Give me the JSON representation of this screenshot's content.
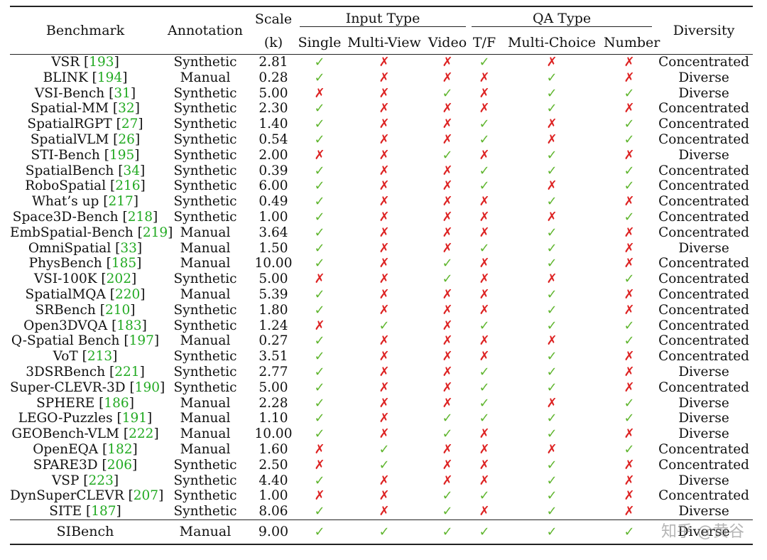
{
  "header": {
    "benchmark": "Benchmark",
    "annotation": "Annotation",
    "scale": "Scale",
    "scale_unit": "(k)",
    "input_type": "Input Type",
    "single": "Single",
    "multi_view": "Multi-View",
    "video": "Video",
    "qa_type": "QA Type",
    "tf": "T/F",
    "multi_choice": "Multi-Choice",
    "number": "Number",
    "diversity": "Diversity"
  },
  "symbols": {
    "yes": "✓",
    "no": "✗"
  },
  "rows": [
    {
      "name": "VSR",
      "ref": "193",
      "annotation": "Synthetic",
      "scale": "2.81",
      "single": "yes",
      "multi_view": "no",
      "video": "no",
      "tf": "yes",
      "mc": "no",
      "num": "no",
      "diversity": "Concentrated"
    },
    {
      "name": "BLINK",
      "ref": "194",
      "annotation": "Manual",
      "scale": "0.28",
      "single": "yes",
      "multi_view": "no",
      "video": "no",
      "tf": "no",
      "mc": "yes",
      "num": "no",
      "diversity": "Diverse"
    },
    {
      "name": "VSI-Bench",
      "ref": "31",
      "annotation": "Synthetic",
      "scale": "5.00",
      "single": "no",
      "multi_view": "no",
      "video": "yes",
      "tf": "no",
      "mc": "yes",
      "num": "yes",
      "diversity": "Diverse"
    },
    {
      "name": "Spatial-MM",
      "ref": "32",
      "annotation": "Synthetic",
      "scale": "2.30",
      "single": "yes",
      "multi_view": "no",
      "video": "no",
      "tf": "no",
      "mc": "yes",
      "num": "no",
      "diversity": "Concentrated"
    },
    {
      "name": "SpatialRGPT",
      "ref": "27",
      "annotation": "Synthetic",
      "scale": "1.40",
      "single": "yes",
      "multi_view": "no",
      "video": "no",
      "tf": "yes",
      "mc": "no",
      "num": "yes",
      "diversity": "Concentrated"
    },
    {
      "name": "SpatialVLM",
      "ref": "26",
      "annotation": "Synthetic",
      "scale": "0.54",
      "single": "yes",
      "multi_view": "no",
      "video": "no",
      "tf": "yes",
      "mc": "no",
      "num": "yes",
      "diversity": "Concentrated"
    },
    {
      "name": "STI-Bench",
      "ref": "195",
      "annotation": "Synthetic",
      "scale": "2.00",
      "single": "no",
      "multi_view": "no",
      "video": "yes",
      "tf": "no",
      "mc": "yes",
      "num": "no",
      "diversity": "Diverse"
    },
    {
      "name": "SpatialBench",
      "ref": "34",
      "annotation": "Synthetic",
      "scale": "0.39",
      "single": "yes",
      "multi_view": "no",
      "video": "no",
      "tf": "yes",
      "mc": "yes",
      "num": "yes",
      "diversity": "Concentrated"
    },
    {
      "name": "RoboSpatial",
      "ref": "216",
      "annotation": "Synthetic",
      "scale": "6.00",
      "single": "yes",
      "multi_view": "no",
      "video": "no",
      "tf": "yes",
      "mc": "no",
      "num": "yes",
      "diversity": "Concentrated"
    },
    {
      "name": "What’s up",
      "ref": "217",
      "annotation": "Synthetic",
      "scale": "0.49",
      "single": "yes",
      "multi_view": "no",
      "video": "no",
      "tf": "no",
      "mc": "yes",
      "num": "no",
      "diversity": "Concentrated"
    },
    {
      "name": "Space3D-Bench",
      "ref": "218",
      "annotation": "Synthetic",
      "scale": "1.00",
      "single": "yes",
      "multi_view": "no",
      "video": "no",
      "tf": "no",
      "mc": "no",
      "num": "yes",
      "diversity": "Concentrated"
    },
    {
      "name": "EmbSpatial-Bench",
      "ref": "219",
      "annotation": "Manual",
      "scale": "3.64",
      "single": "yes",
      "multi_view": "no",
      "video": "no",
      "tf": "no",
      "mc": "yes",
      "num": "no",
      "diversity": "Concentrated"
    },
    {
      "name": "OmniSpatial",
      "ref": "33",
      "annotation": "Manual",
      "scale": "1.50",
      "single": "yes",
      "multi_view": "no",
      "video": "no",
      "tf": "yes",
      "mc": "yes",
      "num": "no",
      "diversity": "Diverse"
    },
    {
      "name": "PhysBench",
      "ref": "185",
      "annotation": "Manual",
      "scale": "10.00",
      "single": "yes",
      "multi_view": "no",
      "video": "yes",
      "tf": "no",
      "mc": "yes",
      "num": "no",
      "diversity": "Concentrated"
    },
    {
      "name": "VSI-100K",
      "ref": "202",
      "annotation": "Synthetic",
      "scale": "5.00",
      "single": "no",
      "multi_view": "no",
      "video": "yes",
      "tf": "no",
      "mc": "no",
      "num": "yes",
      "diversity": "Concentrated"
    },
    {
      "name": "SpatialMQA",
      "ref": "220",
      "annotation": "Manual",
      "scale": "5.39",
      "single": "yes",
      "multi_view": "no",
      "video": "no",
      "tf": "no",
      "mc": "yes",
      "num": "no",
      "diversity": "Concentrated"
    },
    {
      "name": "SRBench",
      "ref": "210",
      "annotation": "Synthetic",
      "scale": "1.80",
      "single": "yes",
      "multi_view": "no",
      "video": "no",
      "tf": "no",
      "mc": "yes",
      "num": "no",
      "diversity": "Concentrated"
    },
    {
      "name": "Open3DVQA",
      "ref": "183",
      "annotation": "Synthetic",
      "scale": "1.24",
      "single": "no",
      "multi_view": "yes",
      "video": "no",
      "tf": "yes",
      "mc": "yes",
      "num": "yes",
      "diversity": "Concentrated"
    },
    {
      "name": "Q-Spatial Bench",
      "ref": "197",
      "annotation": "Manual",
      "scale": "0.27",
      "single": "yes",
      "multi_view": "no",
      "video": "no",
      "tf": "no",
      "mc": "no",
      "num": "yes",
      "diversity": "Concentrated"
    },
    {
      "name": "VoT",
      "ref": "213",
      "annotation": "Synthetic",
      "scale": "3.51",
      "single": "yes",
      "multi_view": "no",
      "video": "no",
      "tf": "no",
      "mc": "yes",
      "num": "no",
      "diversity": "Concentrated"
    },
    {
      "name": "3DSRBench",
      "ref": "221",
      "annotation": "Synthetic",
      "scale": "2.77",
      "single": "yes",
      "multi_view": "no",
      "video": "no",
      "tf": "yes",
      "mc": "yes",
      "num": "no",
      "diversity": "Diverse"
    },
    {
      "name": "Super-CLEVR-3D",
      "ref": "190",
      "annotation": "Synthetic",
      "scale": "5.00",
      "single": "yes",
      "multi_view": "no",
      "video": "no",
      "tf": "yes",
      "mc": "yes",
      "num": "no",
      "diversity": "Concentrated"
    },
    {
      "name": "SPHERE",
      "ref": "186",
      "annotation": "Manual",
      "scale": "2.28",
      "single": "yes",
      "multi_view": "no",
      "video": "no",
      "tf": "yes",
      "mc": "no",
      "num": "yes",
      "diversity": "Diverse"
    },
    {
      "name": "LEGO-Puzzles",
      "ref": "191",
      "annotation": "Manual",
      "scale": "1.10",
      "single": "yes",
      "multi_view": "no",
      "video": "yes",
      "tf": "yes",
      "mc": "yes",
      "num": "yes",
      "diversity": "Diverse"
    },
    {
      "name": "GEOBench-VLM",
      "ref": "222",
      "annotation": "Manual",
      "scale": "10.00",
      "single": "yes",
      "multi_view": "no",
      "video": "yes",
      "tf": "no",
      "mc": "yes",
      "num": "no",
      "diversity": "Diverse"
    },
    {
      "name": "OpenEQA",
      "ref": "182",
      "annotation": "Manual",
      "scale": "1.60",
      "single": "no",
      "multi_view": "yes",
      "video": "no",
      "tf": "no",
      "mc": "no",
      "num": "yes",
      "diversity": "Concentrated"
    },
    {
      "name": "SPARE3D",
      "ref": "206",
      "annotation": "Synthetic",
      "scale": "2.50",
      "single": "no",
      "multi_view": "yes",
      "video": "no",
      "tf": "no",
      "mc": "yes",
      "num": "no",
      "diversity": "Concentrated"
    },
    {
      "name": "VSP",
      "ref": "223",
      "annotation": "Synthetic",
      "scale": "4.40",
      "single": "yes",
      "multi_view": "no",
      "video": "no",
      "tf": "no",
      "mc": "yes",
      "num": "no",
      "diversity": "Diverse"
    },
    {
      "name": "DynSuperCLEVR",
      "ref": "207",
      "annotation": "Synthetic",
      "scale": "1.00",
      "single": "no",
      "multi_view": "no",
      "video": "yes",
      "tf": "yes",
      "mc": "yes",
      "num": "no",
      "diversity": "Concentrated"
    },
    {
      "name": "SITE",
      "ref": "187",
      "annotation": "Synthetic",
      "scale": "8.06",
      "single": "yes",
      "multi_view": "no",
      "video": "yes",
      "tf": "no",
      "mc": "yes",
      "num": "no",
      "diversity": "Diverse"
    }
  ],
  "footer": {
    "name": "SIBench",
    "annotation": "Manual",
    "scale": "9.00",
    "single": "yes",
    "multi_view": "yes",
    "video": "yes",
    "tf": "yes",
    "mc": "yes",
    "num": "yes",
    "diversity": "Diverse"
  },
  "watermark": "知乎 @黄谷"
}
